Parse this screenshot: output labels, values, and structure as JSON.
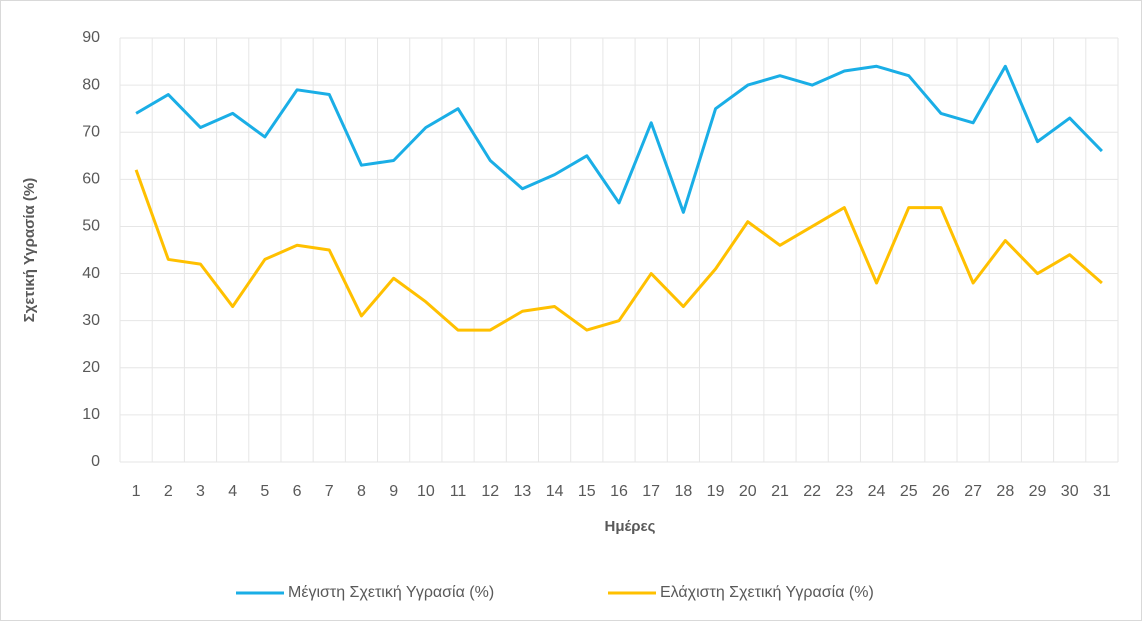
{
  "chart_data": {
    "type": "line",
    "x_label": "Ημέρες",
    "y_label": "Σχετική Υγρασία (%)",
    "categories": [
      "1",
      "2",
      "3",
      "4",
      "5",
      "6",
      "7",
      "8",
      "9",
      "10",
      "11",
      "12",
      "13",
      "14",
      "15",
      "16",
      "17",
      "18",
      "19",
      "20",
      "21",
      "22",
      "23",
      "24",
      "25",
      "26",
      "27",
      "28",
      "29",
      "30",
      "31"
    ],
    "series": [
      {
        "name": "Μέγιστη Σχετική Υγρασία (%)",
        "color": "#1aaee6",
        "values": [
          74,
          78,
          71,
          74,
          69,
          79,
          78,
          63,
          64,
          71,
          75,
          64,
          58,
          61,
          65,
          55,
          72,
          53,
          75,
          80,
          82,
          80,
          83,
          84,
          82,
          74,
          72,
          84,
          68,
          73,
          66
        ]
      },
      {
        "name": "Ελάχιστη Σχετική Υγρασία (%)",
        "color": "#ffc000",
        "values": [
          62,
          43,
          42,
          33,
          43,
          46,
          45,
          31,
          39,
          34,
          28,
          28,
          32,
          33,
          28,
          30,
          40,
          33,
          41,
          51,
          46,
          50,
          54,
          38,
          54,
          54,
          38,
          47,
          40,
          44,
          38
        ]
      }
    ],
    "ylim": [
      0,
      90
    ],
    "yticks": [
      0,
      10,
      20,
      30,
      40,
      50,
      60,
      70,
      80,
      90
    ],
    "grid": true,
    "legend": "bottom"
  }
}
